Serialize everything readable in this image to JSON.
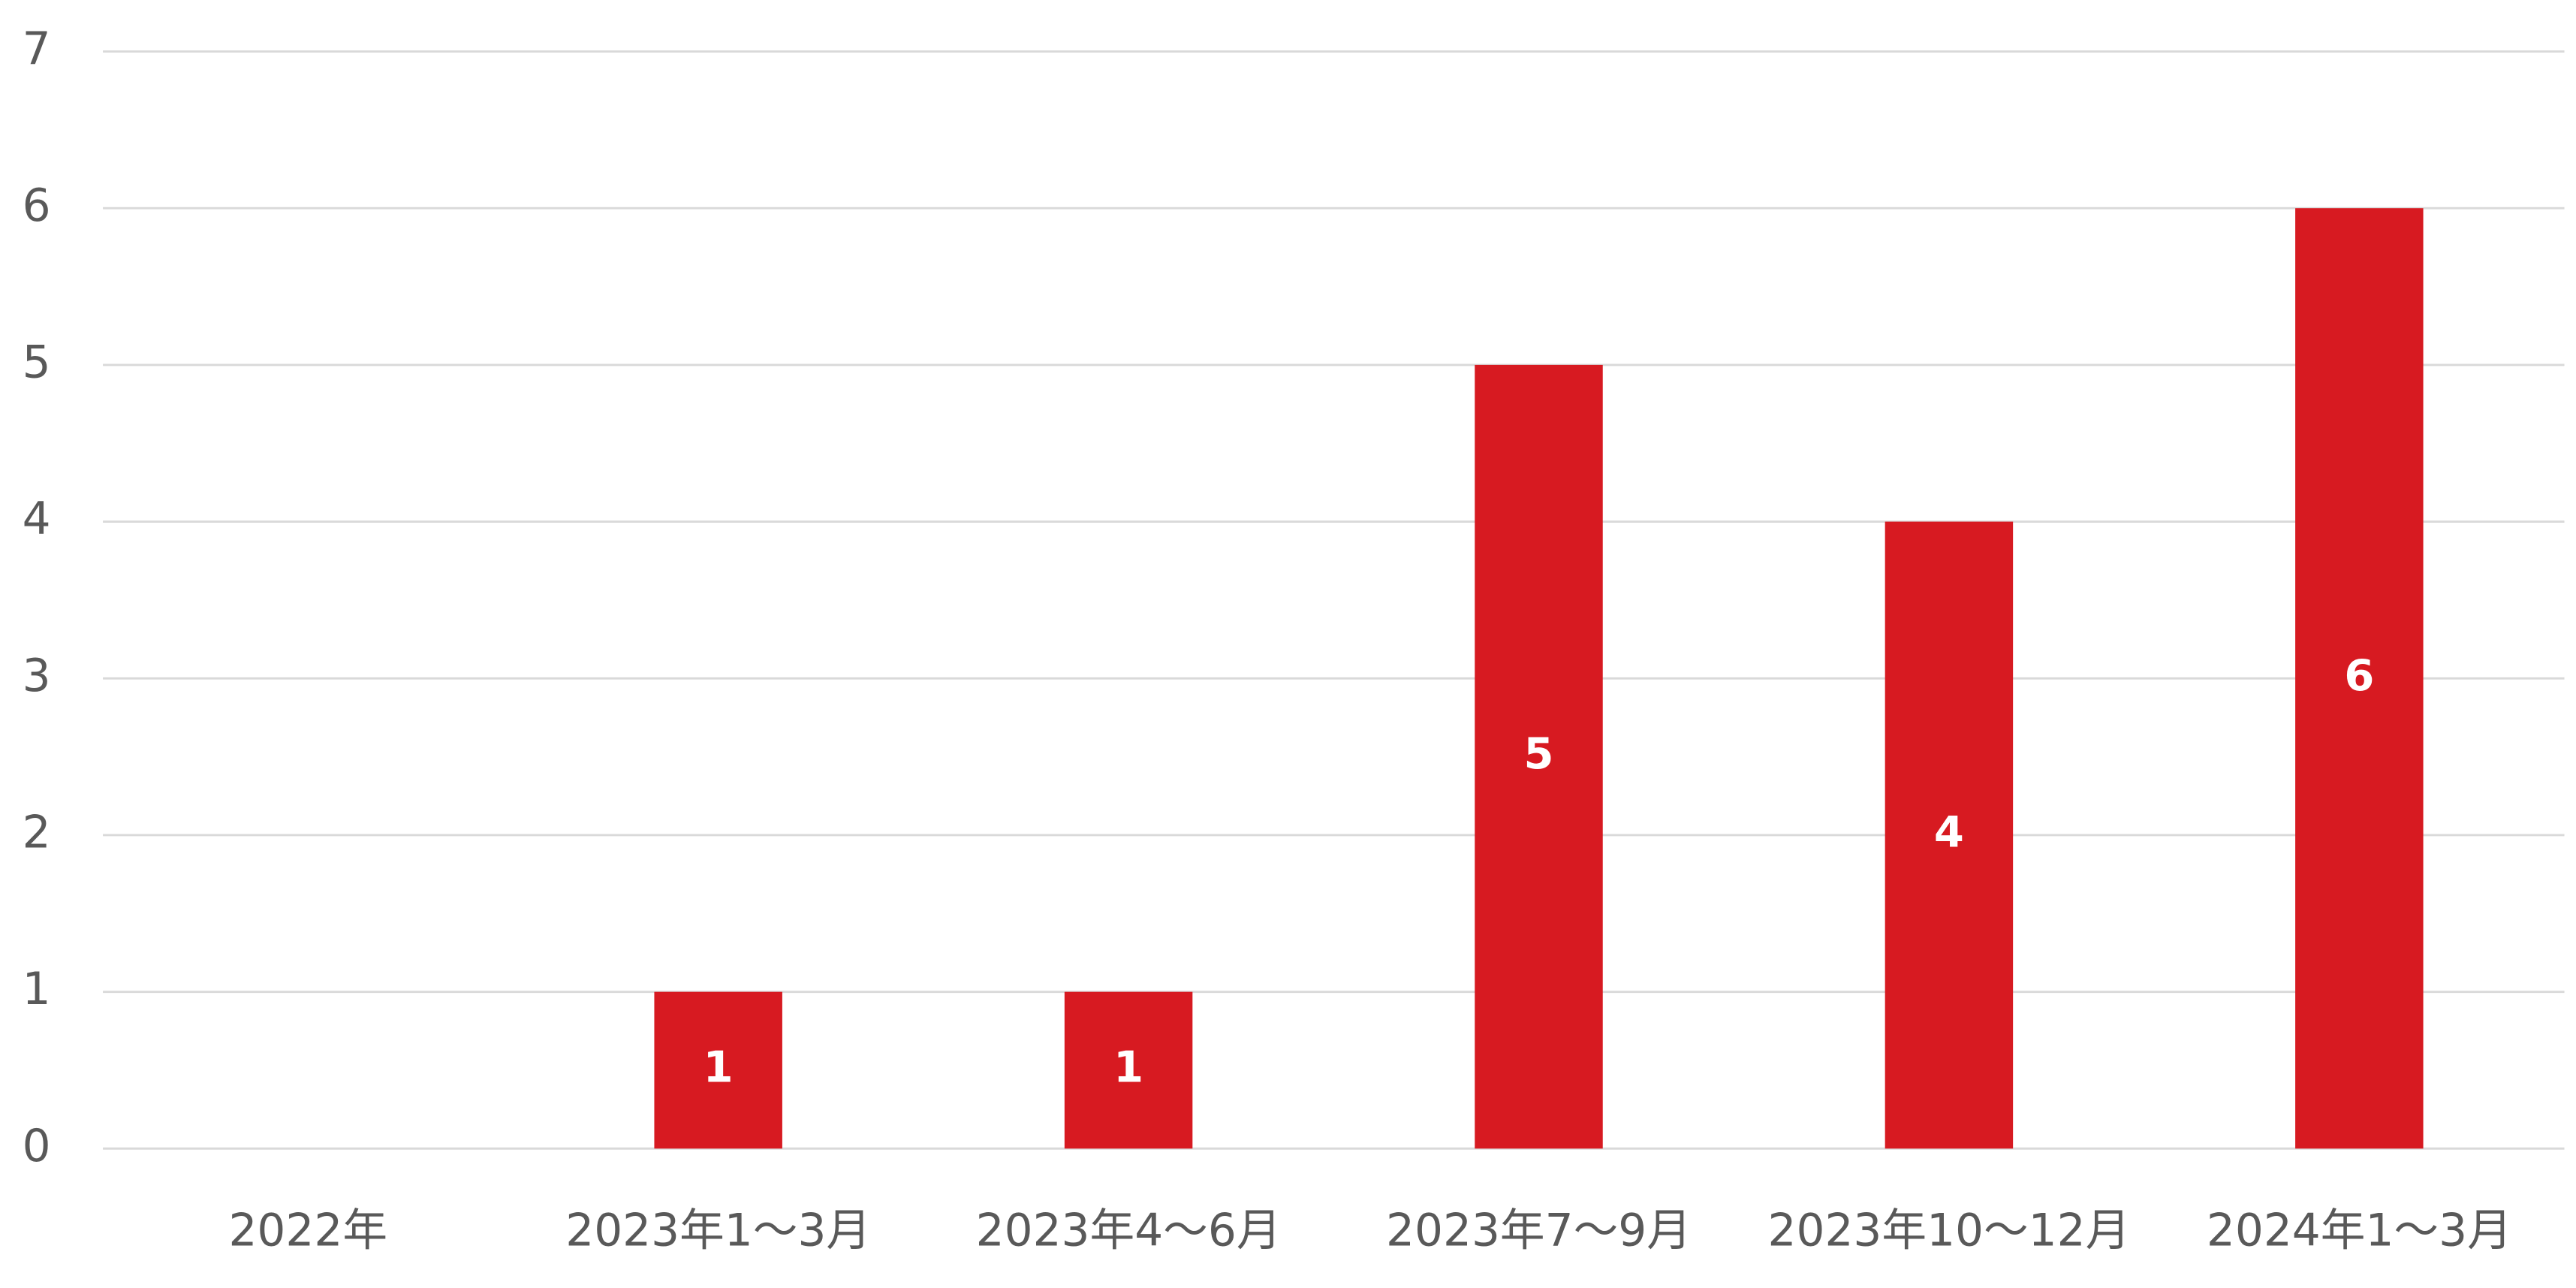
{
  "chart_data": {
    "type": "bar",
    "categories": [
      "2022年",
      "2023年1～3月",
      "2023年4～6月",
      "2023年7～9月",
      "2023年10～12月",
      "2024年1～3月"
    ],
    "values": [
      null,
      1,
      1,
      5,
      4,
      6
    ],
    "color": "#d71a21",
    "ylim": [
      0,
      7
    ],
    "yticks": [
      0,
      1,
      2,
      3,
      4,
      5,
      6,
      7
    ],
    "grid": true
  }
}
